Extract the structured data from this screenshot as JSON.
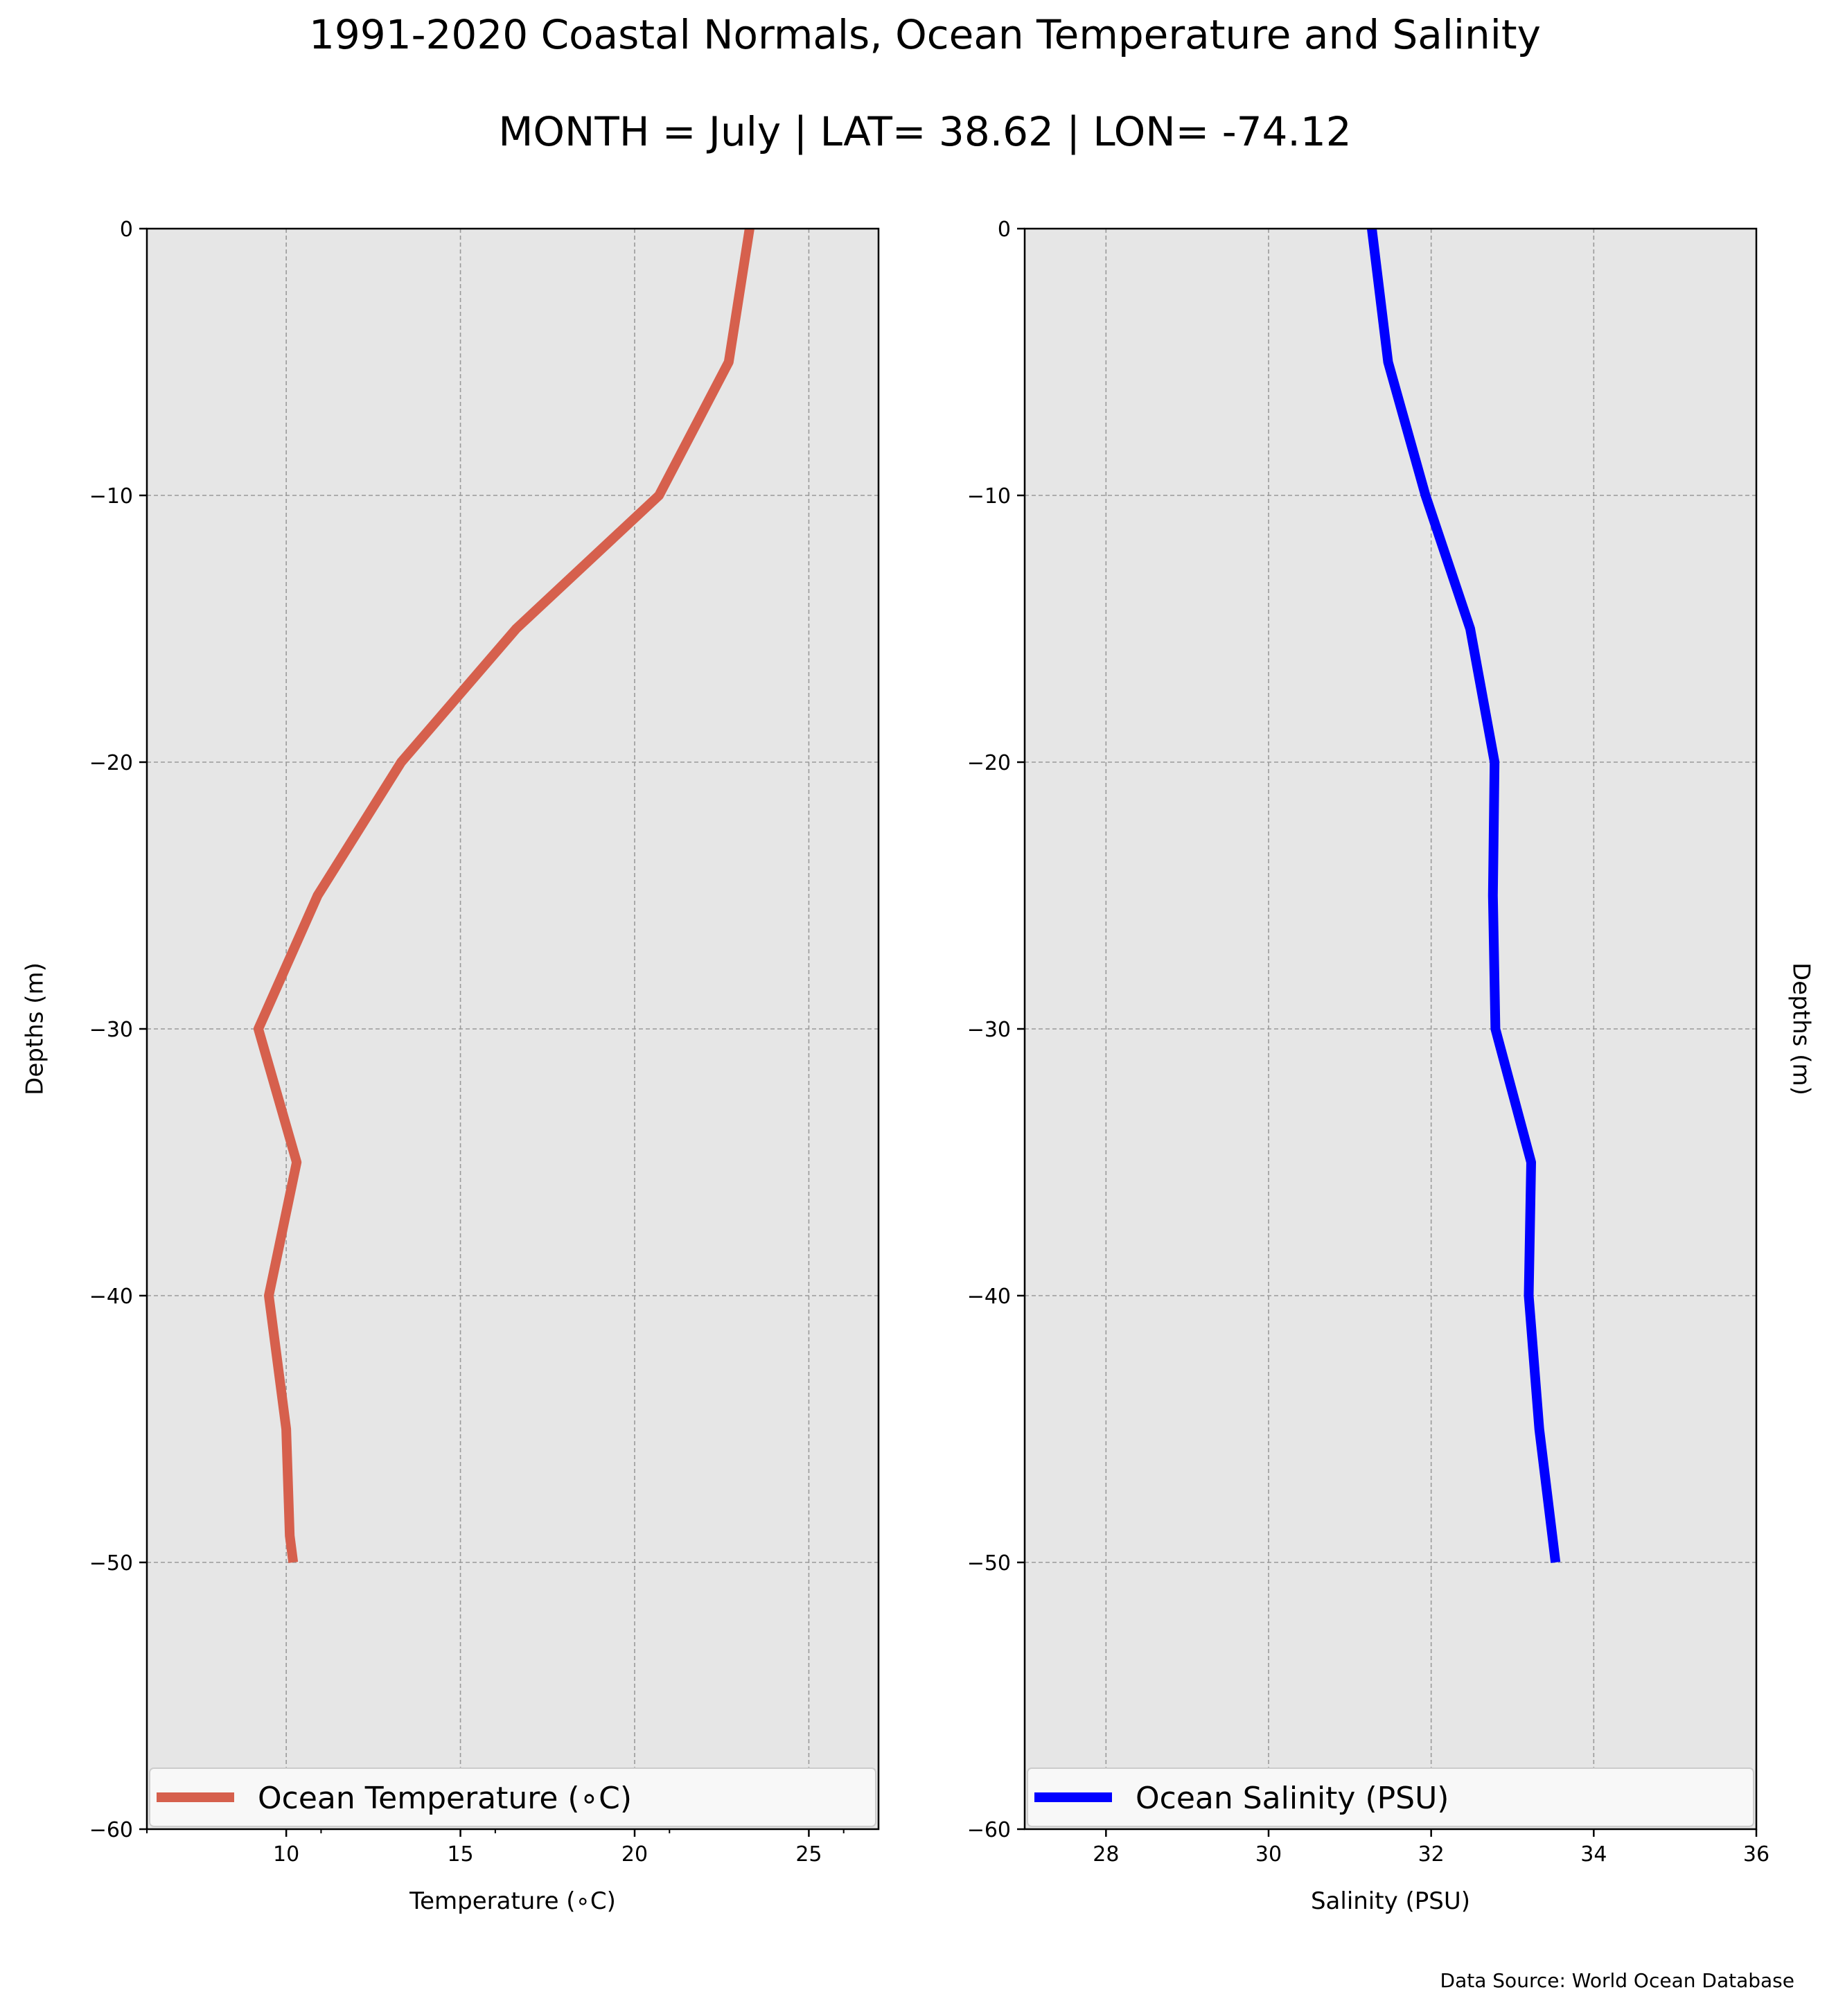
{
  "figure": {
    "title": "1991-2020 Coastal Normals, Ocean Temperature and Salinity",
    "subtitle": "MONTH = July | LAT= 38.62 | LON= -74.12",
    "source": "Data Source: World Ocean Database"
  },
  "chart_data": [
    {
      "type": "line",
      "xlabel": "Temperature (∘C)",
      "ylabel": "Depths (m)",
      "ylabel_side": "left",
      "xlim": [
        6,
        27
      ],
      "ylim": [
        -60,
        0
      ],
      "xticks": [
        10,
        15,
        20,
        25
      ],
      "xtick_labels": [
        "10",
        "15",
        "20",
        "25"
      ],
      "x_minor_ticks": [
        6,
        11,
        16,
        21,
        26
      ],
      "yticks": [
        0,
        -10,
        -20,
        -30,
        -40,
        -50,
        -60
      ],
      "ytick_labels": [
        "0",
        "−10",
        "−20",
        "−30",
        "−40",
        "−50",
        "−60"
      ],
      "grid": true,
      "legend": "bottom",
      "background": "#e6e6e6",
      "series": [
        {
          "name": "Ocean Temperature (∘C)",
          "color": "#d6604d",
          "points": [
            {
              "x": 23.3,
              "y": 0
            },
            {
              "x": 22.7,
              "y": -5
            },
            {
              "x": 20.7,
              "y": -10
            },
            {
              "x": 16.6,
              "y": -15
            },
            {
              "x": 13.3,
              "y": -20
            },
            {
              "x": 10.9,
              "y": -25
            },
            {
              "x": 9.2,
              "y": -30
            },
            {
              "x": 10.3,
              "y": -35
            },
            {
              "x": 9.5,
              "y": -40
            },
            {
              "x": 10.0,
              "y": -45
            },
            {
              "x": 10.1,
              "y": -49
            },
            {
              "x": 10.2,
              "y": -50
            }
          ]
        }
      ]
    },
    {
      "type": "line",
      "xlabel": "Salinity (PSU)",
      "ylabel": "Depths (m)",
      "ylabel_side": "right",
      "xlim": [
        27,
        36
      ],
      "ylim": [
        -60,
        0
      ],
      "xticks": [
        28,
        30,
        32,
        34,
        36
      ],
      "xtick_labels": [
        "28",
        "30",
        "32",
        "34",
        "36"
      ],
      "x_minor_ticks": [],
      "yticks": [
        0,
        -10,
        -20,
        -30,
        -40,
        -50,
        -60
      ],
      "ytick_labels": [
        "0",
        "−10",
        "−20",
        "−30",
        "−40",
        "−50",
        "−60"
      ],
      "grid": true,
      "legend": "bottom",
      "background": "#e6e6e6",
      "series": [
        {
          "name": "Ocean Salinity (PSU)",
          "color": "#0000ff",
          "points": [
            {
              "x": 31.27,
              "y": 0
            },
            {
              "x": 31.47,
              "y": -5
            },
            {
              "x": 31.93,
              "y": -10
            },
            {
              "x": 32.48,
              "y": -15
            },
            {
              "x": 32.78,
              "y": -20
            },
            {
              "x": 32.76,
              "y": -25
            },
            {
              "x": 32.79,
              "y": -30
            },
            {
              "x": 33.23,
              "y": -35
            },
            {
              "x": 33.2,
              "y": -40
            },
            {
              "x": 33.33,
              "y": -45
            },
            {
              "x": 33.53,
              "y": -50
            }
          ]
        }
      ]
    }
  ]
}
